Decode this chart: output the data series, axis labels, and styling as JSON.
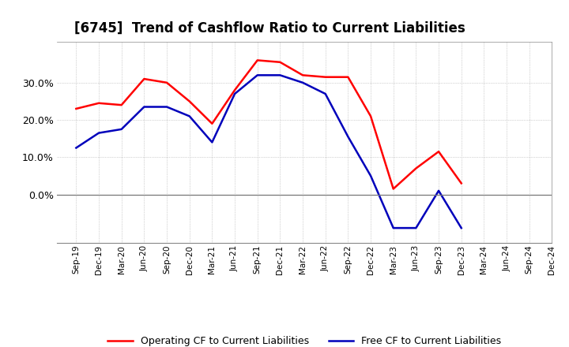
{
  "title": "[6745]  Trend of Cashflow Ratio to Current Liabilities",
  "labels": [
    "Sep-19",
    "Dec-19",
    "Mar-20",
    "Jun-20",
    "Sep-20",
    "Dec-20",
    "Mar-21",
    "Jun-21",
    "Sep-21",
    "Dec-21",
    "Mar-22",
    "Jun-22",
    "Sep-22",
    "Dec-22",
    "Mar-23",
    "Jun-23",
    "Sep-23",
    "Dec-23",
    "Mar-24",
    "Jun-24",
    "Sep-24",
    "Dec-24"
  ],
  "operating_cf": [
    0.23,
    0.245,
    0.24,
    0.31,
    0.3,
    0.25,
    0.19,
    0.28,
    0.36,
    0.355,
    0.32,
    0.315,
    0.315,
    0.21,
    0.015,
    0.07,
    0.115,
    0.03,
    null,
    null,
    null,
    null
  ],
  "free_cf": [
    0.125,
    0.165,
    0.175,
    0.235,
    0.235,
    0.21,
    0.14,
    0.27,
    0.32,
    0.32,
    0.3,
    0.27,
    0.155,
    0.05,
    -0.09,
    -0.09,
    0.01,
    -0.09,
    null,
    null,
    null,
    null
  ],
  "operating_color": "#ff0000",
  "free_color": "#0000bb",
  "ylim": [
    -0.13,
    0.41
  ],
  "yticks": [
    0.0,
    0.1,
    0.2,
    0.3
  ],
  "ytick_labels": [
    "0.0%",
    "10.0%",
    "20.0%",
    "30.0%"
  ],
  "background_color": "#ffffff",
  "plot_bg_color": "#ffffff",
  "grid_color": "#aaaaaa",
  "legend_op": "Operating CF to Current Liabilities",
  "legend_free": "Free CF to Current Liabilities",
  "title_fontsize": 12,
  "figwidth": 7.2,
  "figheight": 4.4,
  "dpi": 100
}
